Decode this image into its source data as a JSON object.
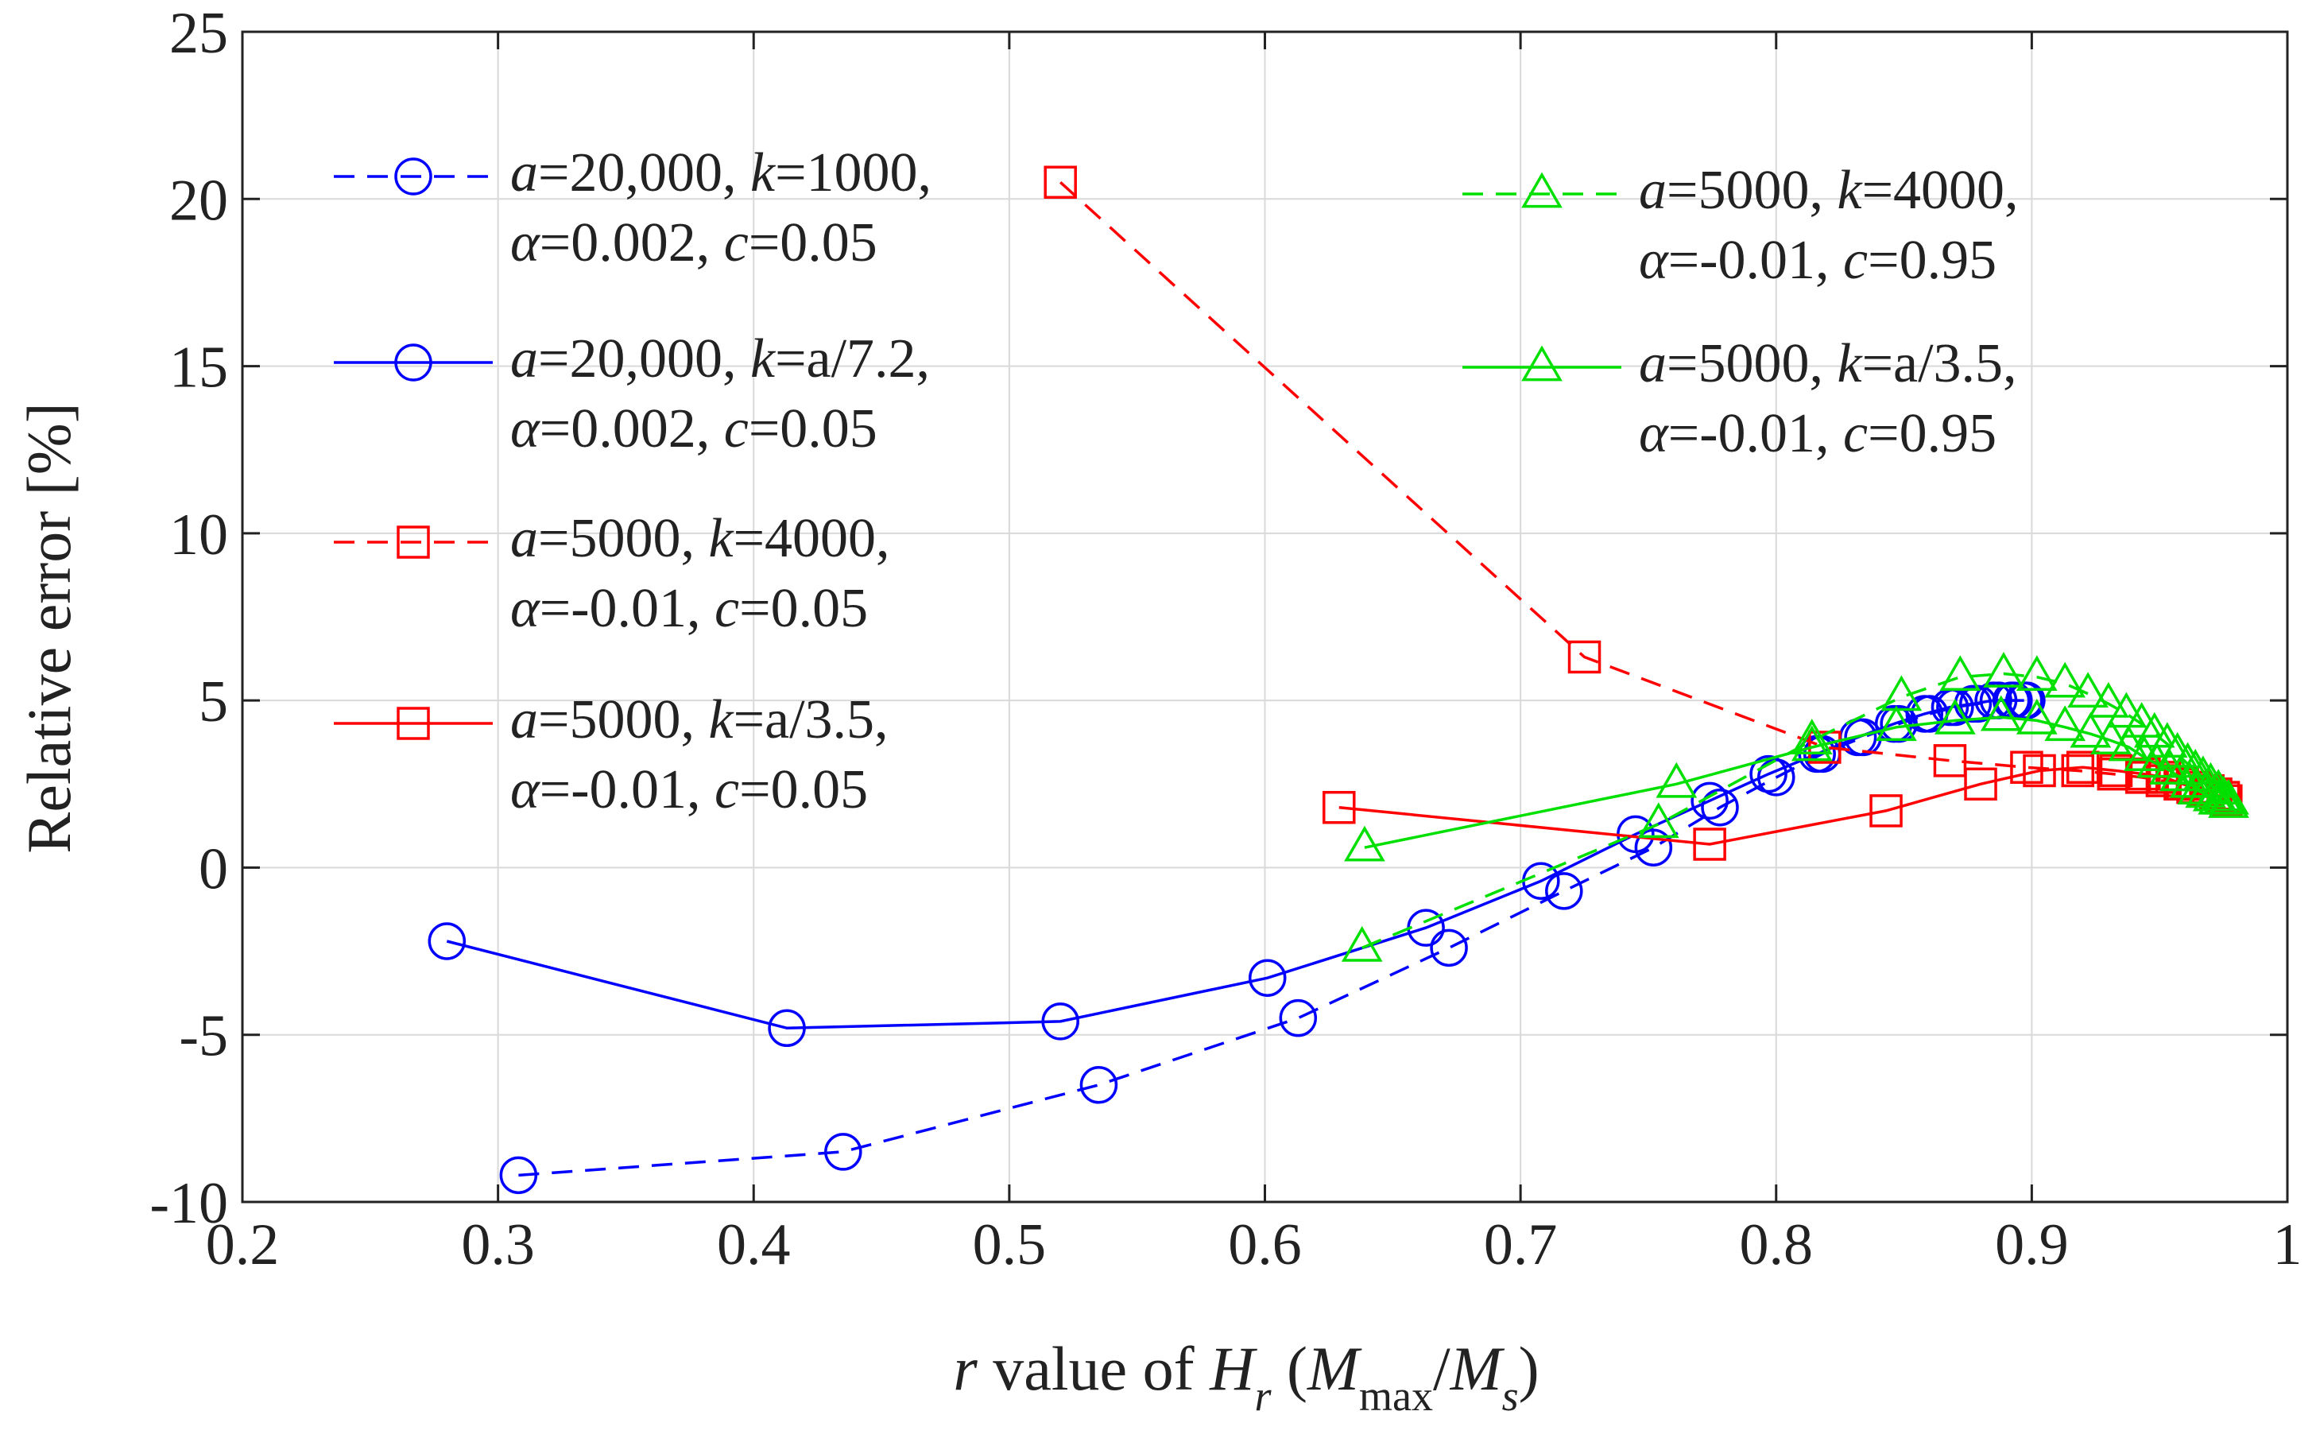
{
  "chart_data": {
    "type": "line",
    "xlabel": {
      "italic_r": "r",
      "mid": " value of ",
      "italic_H": "H",
      "sub_r": "r",
      "open": " (",
      "italic_M1": "M",
      "sub_max": "max",
      "slash": "/",
      "italic_M2": "M",
      "sub_s": "s",
      "close": ")"
    },
    "ylabel": "Relative error [%]",
    "xlim": [
      0.2,
      1.0
    ],
    "ylim": [
      -10,
      25
    ],
    "xticks": [
      "0.2",
      "0.3",
      "0.4",
      "0.5",
      "0.6",
      "0.7",
      "0.8",
      "0.9",
      "1"
    ],
    "yticks": [
      "-10",
      "-5",
      "0",
      "5",
      "10",
      "15",
      "20",
      "25"
    ],
    "grid": true,
    "series": [
      {
        "name": "a=20,000, k=1000, α=0.002, c=0.05",
        "legend_lines": [
          [
            {
              "t": "a",
              "i": true
            },
            {
              "t": "=20,000, "
            },
            {
              "t": "k",
              "i": true
            },
            {
              "t": "=1000,"
            }
          ],
          [
            {
              "t": "α",
              "i": true
            },
            {
              "t": "=0.002, "
            },
            {
              "t": "c",
              "i": true
            },
            {
              "t": "=0.05"
            }
          ]
        ],
        "color": "#0000ff",
        "dash": true,
        "marker": "circle",
        "x": [
          0.308,
          0.435,
          0.535,
          0.613,
          0.672,
          0.717,
          0.752,
          0.778,
          0.8,
          0.818,
          0.834,
          0.848,
          0.86,
          0.87,
          0.879,
          0.887,
          0.893,
          0.898
        ],
        "y": [
          -9.2,
          -8.5,
          -6.5,
          -4.5,
          -2.4,
          -0.7,
          0.6,
          1.8,
          2.7,
          3.4,
          3.9,
          4.3,
          4.6,
          4.8,
          4.9,
          5.0,
          5.0,
          5.0
        ]
      },
      {
        "name": "a=20,000, k=a/7.2, α=0.002, c=0.05",
        "legend_lines": [
          [
            {
              "t": "a",
              "i": true
            },
            {
              "t": "=20,000, "
            },
            {
              "t": "k",
              "i": true
            },
            {
              "t": "=a/7.2,"
            }
          ],
          [
            {
              "t": "α",
              "i": true
            },
            {
              "t": "=0.002, "
            },
            {
              "t": "c",
              "i": true
            },
            {
              "t": "=0.05"
            }
          ]
        ],
        "color": "#0000ff",
        "dash": false,
        "marker": "circle",
        "x": [
          0.28,
          0.413,
          0.52,
          0.601,
          0.663,
          0.708,
          0.745,
          0.774,
          0.797,
          0.816,
          0.832,
          0.846,
          0.858,
          0.868,
          0.877,
          0.885,
          0.892,
          0.897
        ],
        "y": [
          -2.2,
          -4.8,
          -4.6,
          -3.3,
          -1.8,
          -0.4,
          1.0,
          2.0,
          2.8,
          3.4,
          3.9,
          4.3,
          4.6,
          4.8,
          4.9,
          5.0,
          5.0,
          5.0
        ]
      },
      {
        "name": "a=5000, k=4000, α=-0.01, c=0.05",
        "legend_lines": [
          [
            {
              "t": "a",
              "i": true
            },
            {
              "t": "=5000, "
            },
            {
              "t": "k",
              "i": true
            },
            {
              "t": "=4000,"
            }
          ],
          [
            {
              "t": "α",
              "i": true
            },
            {
              "t": "=-0.01, "
            },
            {
              "t": "c",
              "i": true
            },
            {
              "t": "=0.05"
            }
          ]
        ],
        "color": "#ff0000",
        "dash": true,
        "marker": "square",
        "x": [
          0.52,
          0.725,
          0.819,
          0.868,
          0.898,
          0.918,
          0.932,
          0.943,
          0.951,
          0.958,
          0.963,
          0.968,
          0.972,
          0.975
        ],
        "y": [
          20.5,
          6.3,
          3.6,
          3.2,
          3.0,
          2.9,
          2.8,
          2.7,
          2.6,
          2.5,
          2.4,
          2.3,
          2.2,
          2.1
        ]
      },
      {
        "name": "a=5000, k=a/3.5, α=-0.01, c=0.05",
        "legend_lines": [
          [
            {
              "t": "a",
              "i": true
            },
            {
              "t": "=5000, "
            },
            {
              "t": "k",
              "i": true
            },
            {
              "t": "=a/3.5,"
            }
          ],
          [
            {
              "t": "α",
              "i": true
            },
            {
              "t": "=-0.01, "
            },
            {
              "t": "c",
              "i": true
            },
            {
              "t": "=0.05"
            }
          ]
        ],
        "color": "#ff0000",
        "dash": false,
        "marker": "square",
        "x": [
          0.629,
          0.774,
          0.843,
          0.88,
          0.903,
          0.92,
          0.933,
          0.944,
          0.952,
          0.959,
          0.964,
          0.969,
          0.972,
          0.976
        ],
        "y": [
          1.8,
          0.7,
          1.7,
          2.5,
          2.9,
          3.0,
          2.9,
          2.8,
          2.7,
          2.5,
          2.4,
          2.3,
          2.2,
          2.0
        ]
      },
      {
        "name": "a=5000, k=4000, α=-0.01, c=0.95",
        "legend_lines": [
          [
            {
              "t": "a",
              "i": true
            },
            {
              "t": "=5000, "
            },
            {
              "t": "k",
              "i": true
            },
            {
              "t": "=4000,"
            }
          ],
          [
            {
              "t": "α",
              "i": true
            },
            {
              "t": "=-0.01, "
            },
            {
              "t": "c",
              "i": true
            },
            {
              "t": "=0.95"
            }
          ]
        ],
        "color": "#00e000",
        "dash": true,
        "marker": "triangle",
        "x": [
          0.638,
          0.754,
          0.814,
          0.849,
          0.872,
          0.889,
          0.902,
          0.913,
          0.922,
          0.93,
          0.937,
          0.943,
          0.948,
          0.953,
          0.957,
          0.961,
          0.964,
          0.967,
          0.97,
          0.973,
          0.975,
          0.977
        ],
        "y": [
          -2.4,
          1.3,
          3.8,
          5.1,
          5.7,
          5.8,
          5.7,
          5.5,
          5.2,
          4.9,
          4.6,
          4.3,
          4.0,
          3.7,
          3.4,
          3.1,
          2.9,
          2.7,
          2.5,
          2.3,
          2.1,
          2.0
        ]
      },
      {
        "name": "a=5000, k=a/3.5, α=-0.01, c=0.95",
        "legend_lines": [
          [
            {
              "t": "a",
              "i": true
            },
            {
              "t": "=5000, "
            },
            {
              "t": "k",
              "i": true
            },
            {
              "t": "=a/3.5,"
            }
          ],
          [
            {
              "t": "α",
              "i": true
            },
            {
              "t": "=-0.01, "
            },
            {
              "t": "c",
              "i": true
            },
            {
              "t": "=0.95"
            }
          ]
        ],
        "color": "#00e000",
        "dash": false,
        "marker": "triangle",
        "x": [
          0.639,
          0.761,
          0.814,
          0.847,
          0.87,
          0.888,
          0.902,
          0.913,
          0.923,
          0.931,
          0.938,
          0.944,
          0.949,
          0.954,
          0.958,
          0.962,
          0.965,
          0.968,
          0.971,
          0.973,
          0.975,
          0.977
        ],
        "y": [
          0.6,
          2.5,
          3.6,
          4.2,
          4.4,
          4.5,
          4.4,
          4.2,
          4.0,
          3.8,
          3.6,
          3.3,
          3.1,
          2.9,
          2.7,
          2.5,
          2.3,
          2.2,
          2.1,
          2.0,
          2.0,
          1.9
        ]
      }
    ]
  }
}
